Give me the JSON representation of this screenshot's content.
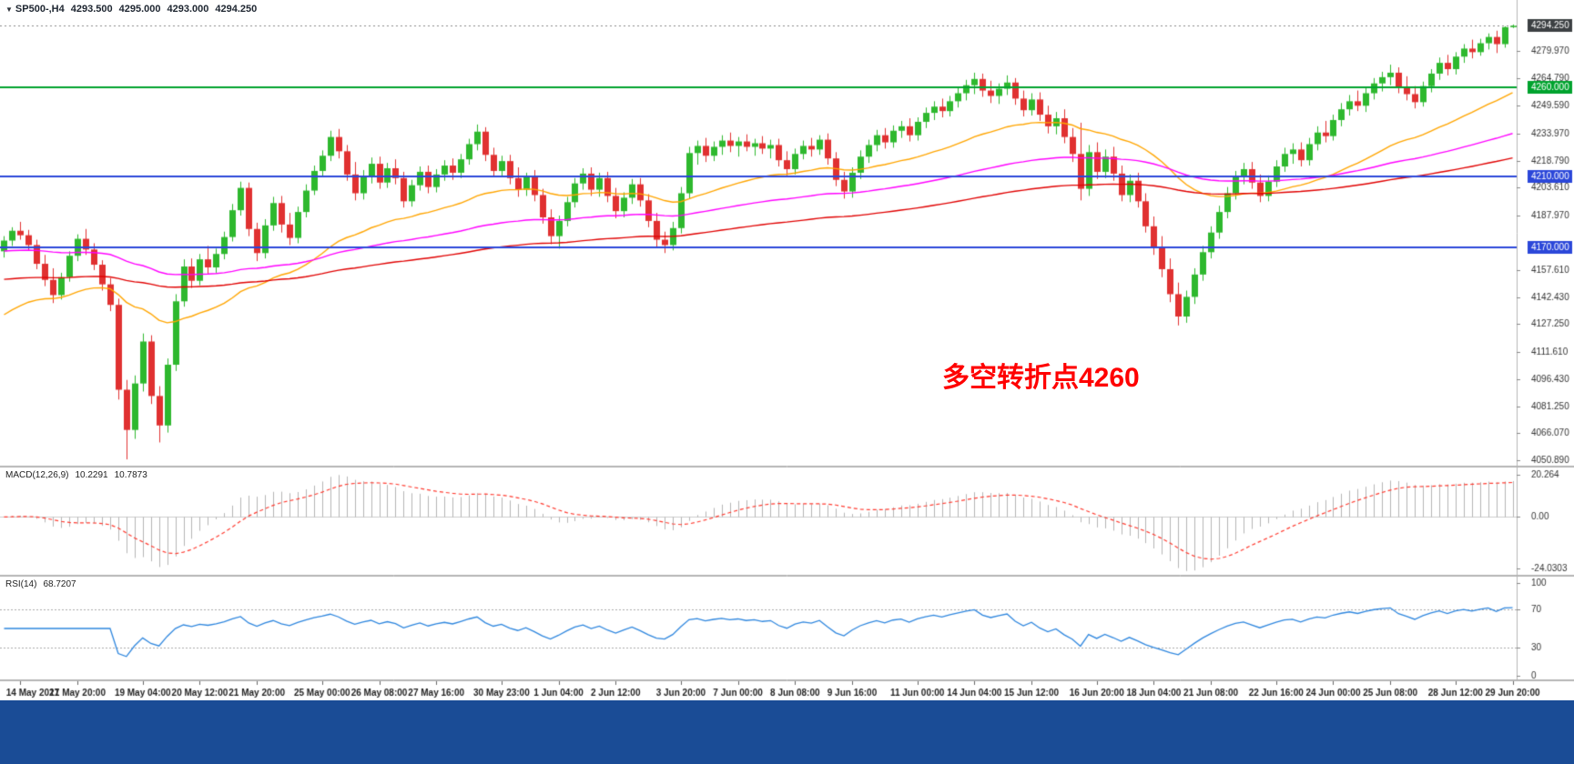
{
  "header": {
    "dropdown_icon": "▼",
    "symbol_period": "SP500-,H4",
    "open": "4293.500",
    "high": "4295.000",
    "low": "4293.000",
    "close": "4294.250"
  },
  "indicator_headers": {
    "macd_name": "MACD(12,26,9)",
    "macd_value": "10.2291",
    "macd_signal": "10.7873",
    "rsi_name": "RSI(14)",
    "rsi_value": "68.7207"
  },
  "annotation": {
    "text": "多空转折点4260",
    "color": "#ff0000"
  },
  "chart_data": {
    "type": "candlestick",
    "symbol": "SP500-",
    "timeframe": "H4",
    "current_ohlc": {
      "open": 4293.5,
      "high": 4295.0,
      "low": 4293.0,
      "close": 4294.25
    },
    "y_axis": {
      "top": 4297.5,
      "bottom": 4049.0,
      "tick_labels": [
        "4279.970",
        "4264.790",
        "4249.590",
        "4233.970",
        "4218.790",
        "4203.610",
        "4187.970",
        "4157.610",
        "4142.430",
        "4127.250",
        "4111.610",
        "4096.430",
        "4081.250",
        "4066.070",
        "4050.890"
      ]
    },
    "price_tags": [
      {
        "label": "4294.250",
        "price": 4294.25,
        "bg": "#3c4043"
      },
      {
        "label": "4260.000",
        "price": 4260.0,
        "bg": "#00a32e"
      },
      {
        "label": "4210.000",
        "price": 4210.0,
        "bg": "#2b47d9"
      },
      {
        "label": "4170.000",
        "price": 4170.0,
        "bg": "#2b47d9"
      }
    ],
    "horizontal_lines": [
      {
        "price": 4260.0,
        "color": "#00a32e",
        "width": 2
      },
      {
        "price": 4210.0,
        "color": "#2b47d9",
        "width": 2
      },
      {
        "price": 4170.0,
        "color": "#2b47d9",
        "width": 2
      }
    ],
    "current_price_line": {
      "price": 4294.25,
      "color": "#888888",
      "style": "dotted"
    },
    "colors": {
      "up": "#2eb82e",
      "down": "#e03131",
      "axis_text": "#333333"
    },
    "moving_averages": [
      {
        "type": "ema",
        "period": 34,
        "color": "#ffa500",
        "seed": 4130.0
      },
      {
        "type": "ema",
        "period": 90,
        "color": "#ff00ff",
        "seed": 4168.0
      },
      {
        "type": "ema",
        "period": 150,
        "color": "#e00000",
        "seed": 4152.0
      }
    ],
    "x_labels": [
      "14 May 2021",
      "17 May 20:00",
      "19 May 04:00",
      "20 May 12:00",
      "21 May 20:00",
      "25 May 00:00",
      "26 May 08:00",
      "27 May 16:00",
      "30 May 23:00",
      "1 Jun 04:00",
      "2 Jun 12:00",
      "3 Jun 20:00",
      "7 Jun 00:00",
      "8 Jun 08:00",
      "9 Jun 16:00",
      "11 Jun 00:00",
      "14 Jun 04:00",
      "15 Jun 12:00",
      "16 Jun 20:00",
      "18 Jun 04:00",
      "21 Jun 08:00",
      "22 Jun 16:00",
      "24 Jun 00:00",
      "25 Jun 08:00",
      "28 Jun 12:00",
      "29 Jun 20:00"
    ],
    "candles": [
      [
        4168.0,
        4176.5,
        4164.5,
        4174.0
      ],
      [
        4174.0,
        4181.5,
        4171.0,
        4179.5
      ],
      [
        4179.5,
        4184.5,
        4174.5,
        4177.0
      ],
      [
        4177.0,
        4180.0,
        4168.5,
        4171.5
      ],
      [
        4171.5,
        4174.5,
        4158.0,
        4161.0
      ],
      [
        4161.0,
        4166.0,
        4148.5,
        4152.0
      ],
      [
        4152.0,
        4158.5,
        4139.0,
        4143.5
      ],
      [
        4143.5,
        4156.0,
        4141.0,
        4153.5
      ],
      [
        4153.5,
        4168.0,
        4151.0,
        4165.5
      ],
      [
        4165.5,
        4177.5,
        4162.5,
        4175.0
      ],
      [
        4175.0,
        4180.5,
        4166.0,
        4169.0
      ],
      [
        4169.0,
        4172.5,
        4157.5,
        4160.5
      ],
      [
        4160.5,
        4163.0,
        4146.0,
        4149.5
      ],
      [
        4149.5,
        4153.0,
        4134.5,
        4138.0
      ],
      [
        4138.0,
        4141.5,
        4085.0,
        4090.5
      ],
      [
        4090.5,
        4096.0,
        4051.5,
        4068.0
      ],
      [
        4068.0,
        4098.5,
        4063.0,
        4094.0
      ],
      [
        4094.0,
        4122.0,
        4089.5,
        4117.5
      ],
      [
        4117.5,
        4121.0,
        4082.5,
        4087.0
      ],
      [
        4087.0,
        4092.5,
        4061.0,
        4070.5
      ],
      [
        4070.5,
        4108.0,
        4066.5,
        4104.5
      ],
      [
        4104.5,
        4144.0,
        4101.0,
        4140.0
      ],
      [
        4140.0,
        4163.5,
        4137.0,
        4159.5
      ],
      [
        4159.5,
        4164.0,
        4147.5,
        4151.5
      ],
      [
        4151.5,
        4166.5,
        4149.0,
        4163.5
      ],
      [
        4163.5,
        4171.0,
        4155.5,
        4159.0
      ],
      [
        4159.0,
        4169.5,
        4156.0,
        4166.5
      ],
      [
        4166.5,
        4179.0,
        4163.5,
        4176.0
      ],
      [
        4176.0,
        4194.5,
        4173.5,
        4191.0
      ],
      [
        4191.0,
        4207.0,
        4188.0,
        4203.5
      ],
      [
        4203.5,
        4206.5,
        4176.5,
        4180.5
      ],
      [
        4180.5,
        4184.0,
        4162.5,
        4167.0
      ],
      [
        4167.0,
        4186.0,
        4164.0,
        4182.5
      ],
      [
        4182.5,
        4198.5,
        4179.5,
        4195.0
      ],
      [
        4195.0,
        4199.0,
        4178.5,
        4183.0
      ],
      [
        4183.0,
        4189.5,
        4171.5,
        4175.5
      ],
      [
        4175.5,
        4193.0,
        4172.5,
        4190.0
      ],
      [
        4190.0,
        4205.5,
        4187.0,
        4202.0
      ],
      [
        4202.0,
        4216.0,
        4199.5,
        4213.0
      ],
      [
        4213.0,
        4224.5,
        4210.0,
        4221.5
      ],
      [
        4221.5,
        4235.5,
        4218.5,
        4232.0
      ],
      [
        4232.0,
        4236.5,
        4220.0,
        4224.0
      ],
      [
        4224.0,
        4227.5,
        4207.5,
        4211.0
      ],
      [
        4211.0,
        4218.0,
        4196.5,
        4200.5
      ],
      [
        4200.5,
        4213.5,
        4197.0,
        4210.0
      ],
      [
        4210.0,
        4220.5,
        4206.0,
        4217.0
      ],
      [
        4217.0,
        4221.0,
        4203.0,
        4206.5
      ],
      [
        4206.5,
        4217.5,
        4203.5,
        4214.5
      ],
      [
        4214.5,
        4219.5,
        4205.5,
        4209.0
      ],
      [
        4209.0,
        4212.5,
        4192.5,
        4196.0
      ],
      [
        4196.0,
        4208.0,
        4193.0,
        4205.0
      ],
      [
        4205.0,
        4215.5,
        4202.0,
        4212.5
      ],
      [
        4212.5,
        4216.0,
        4200.5,
        4204.0
      ],
      [
        4204.0,
        4214.0,
        4201.0,
        4211.0
      ],
      [
        4211.0,
        4219.0,
        4207.5,
        4216.0
      ],
      [
        4216.0,
        4220.0,
        4208.0,
        4212.0
      ],
      [
        4212.0,
        4222.5,
        4209.0,
        4219.5
      ],
      [
        4219.5,
        4231.0,
        4216.5,
        4228.0
      ],
      [
        4228.0,
        4239.0,
        4224.5,
        4235.0
      ],
      [
        4235.0,
        4237.5,
        4218.5,
        4222.0
      ],
      [
        4222.0,
        4226.0,
        4209.5,
        4213.0
      ],
      [
        4213.0,
        4221.5,
        4210.0,
        4218.5
      ],
      [
        4218.5,
        4222.0,
        4205.5,
        4209.0
      ],
      [
        4209.0,
        4215.0,
        4198.5,
        4202.5
      ],
      [
        4202.5,
        4212.0,
        4199.0,
        4209.5
      ],
      [
        4209.5,
        4213.5,
        4196.0,
        4199.5
      ],
      [
        4199.5,
        4203.0,
        4183.5,
        4187.0
      ],
      [
        4187.0,
        4191.5,
        4172.0,
        4176.5
      ],
      [
        4176.5,
        4188.0,
        4169.5,
        4185.0
      ],
      [
        4185.0,
        4198.5,
        4182.0,
        4195.5
      ],
      [
        4195.5,
        4209.0,
        4192.5,
        4206.0
      ],
      [
        4206.0,
        4214.5,
        4202.5,
        4211.5
      ],
      [
        4211.5,
        4215.0,
        4199.0,
        4202.5
      ],
      [
        4202.5,
        4212.0,
        4198.5,
        4209.0
      ],
      [
        4209.0,
        4212.5,
        4195.5,
        4199.0
      ],
      [
        4199.0,
        4203.5,
        4186.5,
        4190.5
      ],
      [
        4190.5,
        4201.0,
        4187.0,
        4198.0
      ],
      [
        4198.0,
        4208.5,
        4194.5,
        4205.5
      ],
      [
        4205.5,
        4209.0,
        4193.0,
        4196.5
      ],
      [
        4196.5,
        4200.0,
        4181.5,
        4185.0
      ],
      [
        4185.0,
        4189.5,
        4170.5,
        4174.5
      ],
      [
        4174.5,
        4179.0,
        4167.0,
        4171.5
      ],
      [
        4171.5,
        4184.5,
        4168.5,
        4181.0
      ],
      [
        4181.0,
        4204.0,
        4178.0,
        4200.5
      ],
      [
        4200.5,
        4226.5,
        4197.5,
        4223.0
      ],
      [
        4223.0,
        4230.0,
        4216.5,
        4227.0
      ],
      [
        4227.0,
        4231.5,
        4218.0,
        4221.5
      ],
      [
        4221.5,
        4229.5,
        4218.5,
        4226.5
      ],
      [
        4226.5,
        4233.0,
        4222.0,
        4230.0
      ],
      [
        4230.0,
        4234.5,
        4223.5,
        4227.0
      ],
      [
        4227.0,
        4232.0,
        4221.0,
        4229.5
      ],
      [
        4229.5,
        4233.5,
        4224.0,
        4226.5
      ],
      [
        4226.5,
        4231.0,
        4221.5,
        4228.5
      ],
      [
        4228.5,
        4232.5,
        4222.5,
        4225.5
      ],
      [
        4225.5,
        4230.5,
        4220.0,
        4227.5
      ],
      [
        4227.5,
        4231.0,
        4215.5,
        4219.0
      ],
      [
        4219.0,
        4224.0,
        4210.5,
        4214.0
      ],
      [
        4214.0,
        4225.5,
        4211.0,
        4222.5
      ],
      [
        4222.5,
        4230.0,
        4219.5,
        4227.0
      ],
      [
        4227.0,
        4231.5,
        4221.0,
        4225.0
      ],
      [
        4225.0,
        4233.0,
        4222.0,
        4230.5
      ],
      [
        4230.5,
        4234.0,
        4216.5,
        4220.0
      ],
      [
        4220.0,
        4223.5,
        4204.5,
        4208.0
      ],
      [
        4208.0,
        4212.5,
        4197.5,
        4201.5
      ],
      [
        4201.5,
        4215.0,
        4198.0,
        4212.0
      ],
      [
        4212.0,
        4224.5,
        4208.5,
        4221.0
      ],
      [
        4221.0,
        4230.5,
        4217.5,
        4227.5
      ],
      [
        4227.5,
        4236.0,
        4224.0,
        4233.0
      ],
      [
        4233.0,
        4237.0,
        4225.5,
        4229.0
      ],
      [
        4229.0,
        4238.5,
        4226.0,
        4235.5
      ],
      [
        4235.5,
        4241.0,
        4231.5,
        4238.0
      ],
      [
        4238.0,
        4242.5,
        4229.5,
        4233.0
      ],
      [
        4233.0,
        4243.0,
        4230.0,
        4240.5
      ],
      [
        4240.5,
        4248.5,
        4237.0,
        4245.5
      ],
      [
        4245.5,
        4252.0,
        4241.5,
        4249.0
      ],
      [
        4249.0,
        4253.5,
        4243.0,
        4246.5
      ],
      [
        4246.5,
        4255.0,
        4243.5,
        4252.0
      ],
      [
        4252.0,
        4259.5,
        4248.5,
        4256.5
      ],
      [
        4256.5,
        4264.0,
        4252.5,
        4261.0
      ],
      [
        4261.0,
        4268.0,
        4256.0,
        4264.5
      ],
      [
        4264.5,
        4267.5,
        4254.5,
        4258.0
      ],
      [
        4258.0,
        4263.5,
        4251.0,
        4255.0
      ],
      [
        4255.0,
        4262.0,
        4250.5,
        4259.0
      ],
      [
        4259.0,
        4266.5,
        4255.5,
        4262.5
      ],
      [
        4262.5,
        4265.0,
        4250.0,
        4253.5
      ],
      [
        4253.5,
        4258.0,
        4243.5,
        4247.0
      ],
      [
        4247.0,
        4256.5,
        4244.0,
        4253.0
      ],
      [
        4253.0,
        4257.0,
        4241.0,
        4244.5
      ],
      [
        4244.5,
        4249.5,
        4234.0,
        4238.0
      ],
      [
        4238.0,
        4246.0,
        4233.5,
        4242.5
      ],
      [
        4242.5,
        4247.5,
        4228.5,
        4232.0
      ],
      [
        4232.0,
        4237.0,
        4218.0,
        4222.5
      ],
      [
        4222.5,
        4240.0,
        4196.5,
        4203.0
      ],
      [
        4203.0,
        4227.5,
        4199.0,
        4223.5
      ],
      [
        4223.5,
        4229.0,
        4208.5,
        4212.5
      ],
      [
        4212.5,
        4225.0,
        4209.0,
        4221.0
      ],
      [
        4221.0,
        4226.5,
        4207.5,
        4211.5
      ],
      [
        4211.5,
        4216.0,
        4196.0,
        4199.5
      ],
      [
        4199.5,
        4211.0,
        4195.5,
        4207.5
      ],
      [
        4207.5,
        4212.0,
        4192.5,
        4196.0
      ],
      [
        4196.0,
        4200.5,
        4178.5,
        4182.0
      ],
      [
        4182.0,
        4187.5,
        4166.0,
        4170.0
      ],
      [
        4170.0,
        4176.5,
        4153.5,
        4158.0
      ],
      [
        4158.0,
        4164.0,
        4139.5,
        4144.0
      ],
      [
        4144.0,
        4150.5,
        4126.5,
        4131.5
      ],
      [
        4131.5,
        4146.0,
        4128.0,
        4142.5
      ],
      [
        4142.5,
        4158.5,
        4138.5,
        4155.0
      ],
      [
        4155.0,
        4171.0,
        4151.5,
        4167.5
      ],
      [
        4167.5,
        4182.0,
        4164.0,
        4178.5
      ],
      [
        4178.5,
        4193.5,
        4175.0,
        4190.0
      ],
      [
        4190.0,
        4204.0,
        4186.5,
        4200.5
      ],
      [
        4200.5,
        4213.0,
        4197.0,
        4209.5
      ],
      [
        4209.5,
        4217.5,
        4205.5,
        4214.0
      ],
      [
        4214.0,
        4218.0,
        4203.0,
        4206.5
      ],
      [
        4206.5,
        4211.0,
        4195.5,
        4199.0
      ],
      [
        4199.0,
        4210.5,
        4196.0,
        4207.0
      ],
      [
        4207.0,
        4219.0,
        4204.0,
        4215.5
      ],
      [
        4215.5,
        4226.0,
        4212.5,
        4222.5
      ],
      [
        4222.5,
        4228.5,
        4217.0,
        4225.0
      ],
      [
        4225.0,
        4229.0,
        4215.5,
        4219.0
      ],
      [
        4219.0,
        4231.5,
        4216.0,
        4228.0
      ],
      [
        4228.0,
        4238.0,
        4224.5,
        4234.5
      ],
      [
        4234.5,
        4241.0,
        4229.0,
        4232.5
      ],
      [
        4232.5,
        4244.5,
        4230.0,
        4241.5
      ],
      [
        4241.5,
        4251.0,
        4238.0,
        4247.5
      ],
      [
        4247.5,
        4255.5,
        4244.0,
        4252.0
      ],
      [
        4252.0,
        4258.0,
        4246.5,
        4249.5
      ],
      [
        4249.5,
        4259.5,
        4246.0,
        4256.5
      ],
      [
        4256.5,
        4265.0,
        4253.0,
        4262.0
      ],
      [
        4262.0,
        4268.5,
        4257.5,
        4265.5
      ],
      [
        4265.5,
        4272.5,
        4261.0,
        4268.0
      ],
      [
        4268.0,
        4271.0,
        4256.5,
        4260.0
      ],
      [
        4260.0,
        4266.0,
        4252.5,
        4256.0
      ],
      [
        4256.0,
        4260.5,
        4248.0,
        4251.5
      ],
      [
        4251.5,
        4263.0,
        4249.0,
        4260.5
      ],
      [
        4260.5,
        4270.0,
        4257.0,
        4267.5
      ],
      [
        4267.5,
        4276.5,
        4264.0,
        4273.5
      ],
      [
        4273.5,
        4278.0,
        4266.5,
        4270.0
      ],
      [
        4270.0,
        4279.5,
        4267.0,
        4277.0
      ],
      [
        4277.0,
        4284.0,
        4273.5,
        4281.5
      ],
      [
        4281.5,
        4286.5,
        4276.0,
        4279.5
      ],
      [
        4279.5,
        4287.0,
        4277.5,
        4284.5
      ],
      [
        4284.5,
        4290.0,
        4281.0,
        4288.0
      ],
      [
        4288.0,
        4291.5,
        4279.0,
        4284.0
      ],
      [
        4284.0,
        4294.0,
        4282.0,
        4293.5
      ],
      [
        4293.5,
        4295.0,
        4293.0,
        4294.25
      ]
    ],
    "indicators": {
      "macd": {
        "name": "MACD",
        "params": [
          12,
          26,
          9
        ],
        "value": 10.2291,
        "signal_value": 10.7873,
        "axis": {
          "max": 20.264,
          "min": -24.0303
        },
        "axis_labels": [
          "20.264",
          "0.00",
          "-24.0303"
        ],
        "histogram_color": "#b4b4b4",
        "signal_color": "#ff3b30"
      },
      "rsi": {
        "name": "RSI",
        "params": [
          14
        ],
        "value": 68.7207,
        "levels": [
          70,
          30
        ],
        "axis_labels": [
          "100",
          "70",
          "30",
          "0"
        ],
        "line_color": "#2e86de"
      }
    }
  }
}
